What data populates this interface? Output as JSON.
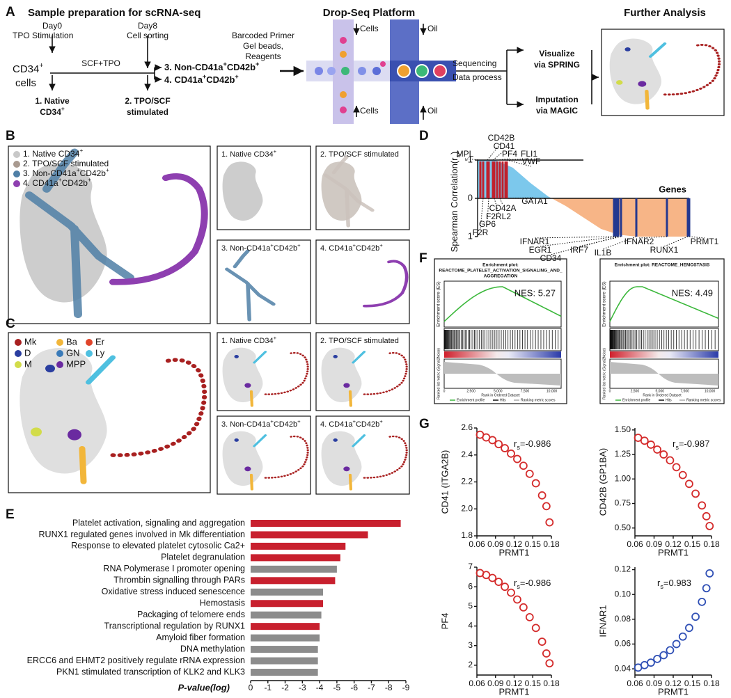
{
  "panel_letters": [
    "A",
    "B",
    "C",
    "D",
    "E",
    "F",
    "G"
  ],
  "panel_a": {
    "title": "Sample preparation for scRNA-seq",
    "day0": "Day0",
    "tpo": "TPO Stimulation",
    "day8": "Day8",
    "sorting": "Cell sorting",
    "scf": "SCF+TPO",
    "cd34": [
      "CD34",
      "+"
    ],
    "cells": "cells",
    "native_line1": "1. Native",
    "native_line2": [
      "CD34",
      "+"
    ],
    "stimulated_line1": "2. TPO/SCF",
    "stimulated_line2": "stimulated",
    "sorted3": [
      "3. Non-CD41a",
      "+",
      "CD42b",
      "+"
    ],
    "sorted4": [
      "4. CD41a",
      "+",
      "CD42b",
      "+"
    ],
    "dropseq_title": "Drop-Seq Platform",
    "reagents": [
      "Barcoded Primer",
      "Gel beads,",
      "Reagents"
    ],
    "cells_label": "Cells",
    "oil_label": "Oil",
    "sequencing": "Sequencing",
    "data_process": "Data process",
    "further_title": "Further Analysis",
    "visualize": [
      "Visualize",
      "via SPRING"
    ],
    "imputation": [
      "Imputation",
      "via MAGIC"
    ]
  },
  "panel_b": {
    "populations": [
      [
        "1. Native CD34",
        "+"
      ],
      [
        "2. TPO/SCF stimulated"
      ],
      [
        "3. Non-CD41a",
        "+",
        "CD42b",
        "+"
      ],
      [
        "4. CD41a",
        "+",
        "CD42b",
        "+"
      ]
    ],
    "colors": [
      "#c8c8c8",
      "#a99a90",
      "#4f7fa6",
      "#8e3fb0"
    ]
  },
  "panel_c": {
    "cell_types": [
      "Mk",
      "Ba",
      "Er",
      "D",
      "GN",
      "Ly",
      "M",
      "MPP"
    ],
    "colors": [
      "#a82020",
      "#f2b63a",
      "#e0442a",
      "#2a3ea0",
      "#3a7ab8",
      "#4fc0e0",
      "#d2dc4a",
      "#6a2aa0"
    ]
  },
  "panel_f": {
    "plots": [
      {
        "title_lines": [
          "Enrichment plot:",
          "REACTOME_PLATELET_ACTIVATION_SIGNALING_AND_",
          "AGGREGATION"
        ],
        "nes": "NES: 5.27"
      },
      {
        "title_lines": [
          "Enrichment plot: REACTOME_HEMOSTASIS"
        ],
        "nes": "NES: 4.49"
      }
    ],
    "es_label": "Enrichment score (ES)",
    "metric_label": "Ranked list metric (Signal2Noise)",
    "rank_label": "Rank in Ordered Dataset",
    "rank_ticks": [
      "0",
      "2,500",
      "5,000",
      "7,500",
      "10,000"
    ],
    "legend": [
      "Enrichment profile",
      "Hits",
      "Ranking metric scores"
    ]
  },
  "chart_data": [
    {
      "type": "bar",
      "categories": [
        "Platelet activation, signaling and aggregation",
        "RUNX1 regulated genes involved in Mk differentiation",
        "Response to elevated platelet cytosolic Ca2+",
        "Platelet degranulation",
        "RNA Polymerase I promoter opening",
        "Thrombin signalling through PARs",
        "Oxidative stress induced senescence",
        "Hemostasis",
        "Packaging of telomere ends",
        "Transcriptional regulation by RUNX1",
        "Amyloid fiber formation",
        "DNA methylation",
        "ERCC6 and EHMT2 positively regulate rRNA expression",
        "PKN1 stimulated transcription of KLK2 and KLK3"
      ],
      "values": [
        -8.7,
        -6.8,
        -5.5,
        -5.2,
        -5.0,
        -4.9,
        -4.2,
        -4.2,
        -4.1,
        -4.0,
        -4.0,
        -3.9,
        -3.9,
        -3.9
      ],
      "colors": [
        "#c8202e",
        "#c8202e",
        "#c8202e",
        "#c8202e",
        "#8c8c8c",
        "#c8202e",
        "#8c8c8c",
        "#c8202e",
        "#8c8c8c",
        "#c8202e",
        "#8c8c8c",
        "#8c8c8c",
        "#8c8c8c",
        "#8c8c8c"
      ],
      "xlim": [
        0,
        -9
      ],
      "xticks": [
        0,
        -1,
        -2,
        -3,
        -4,
        -5,
        -6,
        -7,
        -8,
        -9
      ],
      "xlabel": "P-value(log)"
    },
    {
      "type": "area",
      "values": [
        -1,
        -1,
        -0.8,
        -0.4,
        -0.05,
        0.2,
        0.5,
        0.8,
        0.95,
        1,
        1,
        1,
        1
      ],
      "ylim": [
        1,
        -1
      ],
      "yticks": [
        -1,
        0,
        1
      ],
      "ylabel": [
        "Spearman Correlation(r",
        "s",
        ")"
      ],
      "xlabel": "Genes",
      "color_negative": "#7cc8ec",
      "color_positive": "#f7b587",
      "genes_top": [
        "MPL",
        "CD42B",
        "CD41",
        "PF4",
        "FLI1",
        "VWF",
        "GATA1",
        "CD42A",
        "F2RL2",
        "GP6",
        "F2R"
      ],
      "color_top": "#c0202c",
      "genes_bottom": [
        "IFNAR1",
        "EGR1",
        "CD34",
        "IRF7",
        "IL1B",
        "IFNAR2",
        "RUNX1",
        "PRMT1"
      ],
      "color_bottom": "#23388f"
    },
    {
      "type": "scatter",
      "x": [
        0.065,
        0.075,
        0.085,
        0.095,
        0.105,
        0.115,
        0.125,
        0.135,
        0.145,
        0.155,
        0.165,
        0.172,
        0.177
      ],
      "values": [
        2.55,
        2.53,
        2.51,
        2.48,
        2.45,
        2.41,
        2.37,
        2.32,
        2.26,
        2.19,
        2.1,
        2.02,
        1.9
      ],
      "color": "#d42a2a",
      "xlim": [
        0.06,
        0.18
      ],
      "xticks": [
        0.06,
        0.09,
        0.12,
        0.15,
        0.18
      ],
      "ylim": [
        1.8,
        2.6
      ],
      "yticks": [
        1.8,
        {
          "value": 2,
          "label": "2.0"
        },
        2.2,
        2.4,
        2.6
      ],
      "xlabel": "PRMT1",
      "ylabel": "CD41 (ITGA2B)",
      "annotation": [
        "r",
        "s",
        "=-0.986"
      ]
    },
    {
      "type": "scatter",
      "x": [
        0.065,
        0.075,
        0.085,
        0.095,
        0.105,
        0.115,
        0.125,
        0.135,
        0.145,
        0.155,
        0.165,
        0.172,
        0.177
      ],
      "values": [
        1.42,
        1.39,
        1.35,
        1.3,
        1.25,
        1.19,
        1.12,
        1.04,
        0.95,
        0.85,
        0.73,
        0.62,
        0.52
      ],
      "color": "#d42a2a",
      "xlim": [
        0.06,
        0.18
      ],
      "xticks": [
        0.06,
        0.09,
        0.12,
        0.15,
        0.18
      ],
      "ylim": [
        0.42,
        1.52
      ],
      "yticks": [
        {
          "value": 0.5,
          "label": "0.50"
        },
        0.75,
        {
          "value": 1,
          "label": "1.00"
        },
        1.25,
        {
          "value": 1.5,
          "label": "1.50"
        }
      ],
      "xlabel": "PRMT1",
      "ylabel": "CD42B (GP1BA)",
      "annotation": [
        "r",
        "s",
        "=-0.987"
      ]
    },
    {
      "type": "scatter",
      "x": [
        0.065,
        0.075,
        0.085,
        0.095,
        0.105,
        0.115,
        0.125,
        0.135,
        0.145,
        0.155,
        0.165,
        0.172,
        0.177
      ],
      "values": [
        6.7,
        6.6,
        6.45,
        6.25,
        6.0,
        5.7,
        5.35,
        4.95,
        4.45,
        3.9,
        3.2,
        2.6,
        2.1
      ],
      "color": "#d42a2a",
      "xlim": [
        0.06,
        0.18
      ],
      "xticks": [
        0.06,
        0.09,
        0.12,
        0.15,
        0.18
      ],
      "ylim": [
        1.5,
        7
      ],
      "yticks": [
        2,
        3,
        4,
        5,
        6,
        7
      ],
      "xlabel": "PRMT1",
      "ylabel": "PF4",
      "annotation": [
        "r",
        "s",
        "=-0.986"
      ]
    },
    {
      "type": "scatter",
      "x": [
        0.065,
        0.075,
        0.085,
        0.095,
        0.105,
        0.115,
        0.125,
        0.135,
        0.145,
        0.155,
        0.165,
        0.172,
        0.177
      ],
      "values": [
        0.041,
        0.043,
        0.045,
        0.048,
        0.051,
        0.055,
        0.06,
        0.066,
        0.073,
        0.082,
        0.094,
        0.105,
        0.117
      ],
      "color": "#2f4fb5",
      "xlim": [
        0.06,
        0.18
      ],
      "xticks": [
        0.06,
        0.09,
        0.12,
        0.15,
        0.18
      ],
      "ylim": [
        0.035,
        0.122
      ],
      "yticks": [
        0.04,
        0.06,
        0.08,
        {
          "value": 0.1,
          "label": "0.10"
        },
        0.12
      ],
      "xlabel": "PRMT1",
      "ylabel": "IFNAR1",
      "annotation": [
        "r",
        "s",
        "=0.983"
      ]
    }
  ]
}
